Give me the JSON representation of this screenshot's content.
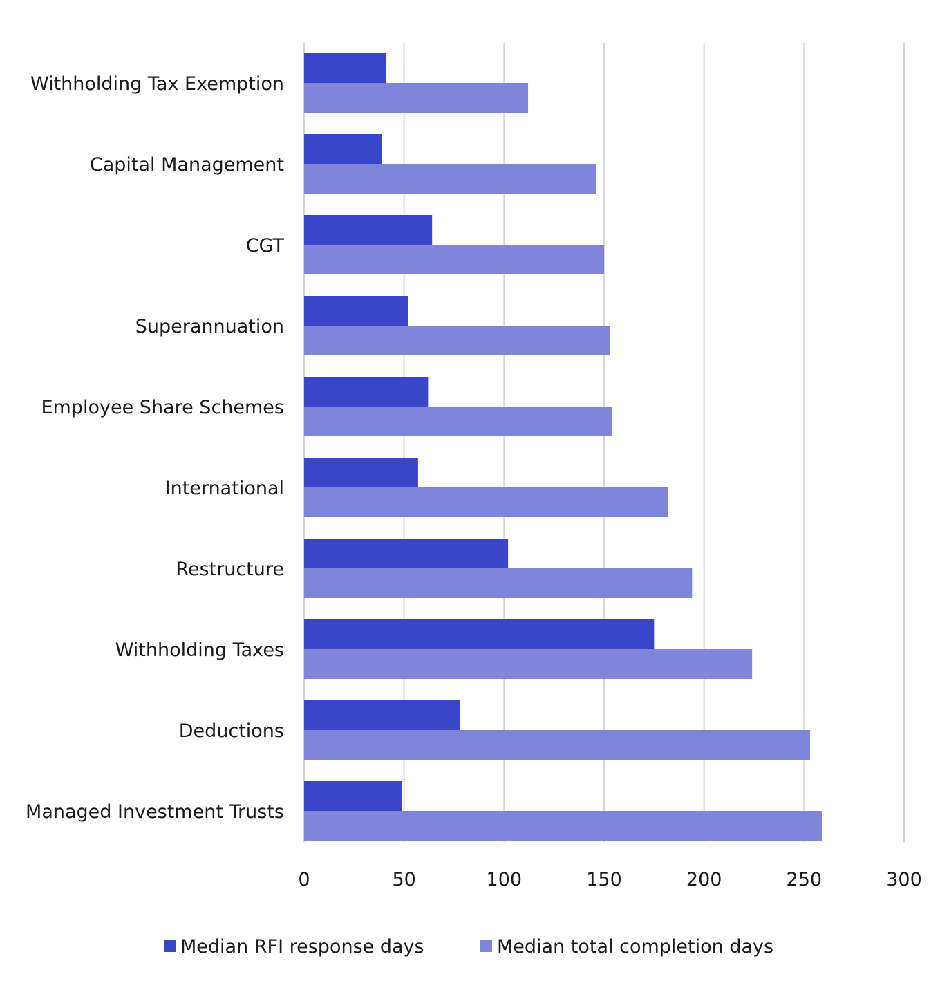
{
  "chart_data": {
    "type": "bar",
    "orientation": "horizontal",
    "categories": [
      "Withholding Tax Exemption",
      "Capital Management",
      "CGT",
      "Superannuation",
      "Employee Share Schemes",
      "International",
      "Restructure",
      "Withholding Taxes",
      "Deductions",
      "Managed Investment Trusts"
    ],
    "series": [
      {
        "name": "Median RFI response days",
        "color": "#3a46c9",
        "values": [
          41,
          39,
          64,
          52,
          62,
          57,
          102,
          175,
          78,
          49
        ]
      },
      {
        "name": "Median total completion days",
        "color": "#7f85da",
        "values": [
          112,
          146,
          150,
          153,
          154,
          182,
          194,
          224,
          253,
          259
        ]
      }
    ],
    "xlim": [
      0,
      300
    ],
    "xticks": [
      0,
      50,
      100,
      150,
      200,
      250,
      300
    ],
    "grid": "vertical",
    "legend": "bottom",
    "title": "",
    "xlabel": "",
    "ylabel": ""
  }
}
